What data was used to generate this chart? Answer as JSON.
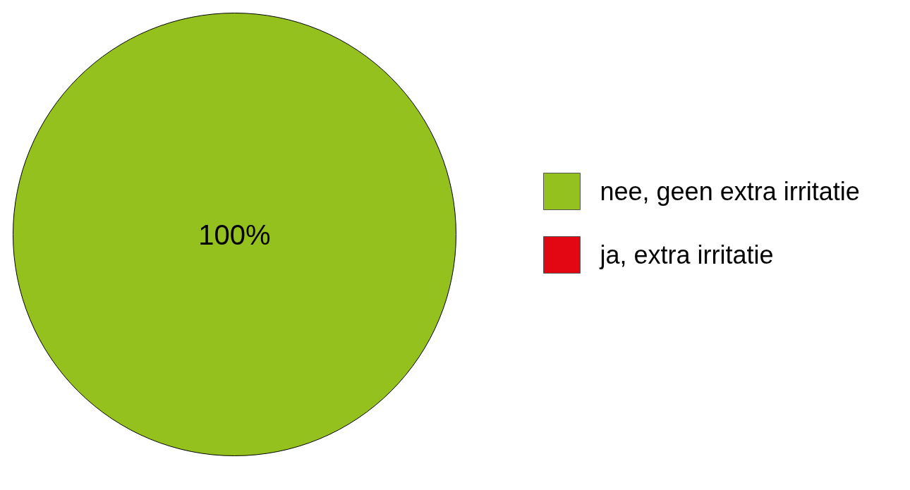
{
  "chart_data": {
    "type": "pie",
    "categories": [
      "nee, geen extra irritatie",
      "ja, extra irritatie"
    ],
    "values": [
      100,
      0
    ],
    "colors": [
      "#95c11f",
      "#e30613"
    ],
    "value_labels": [
      "100%",
      null
    ],
    "legend": "right"
  }
}
